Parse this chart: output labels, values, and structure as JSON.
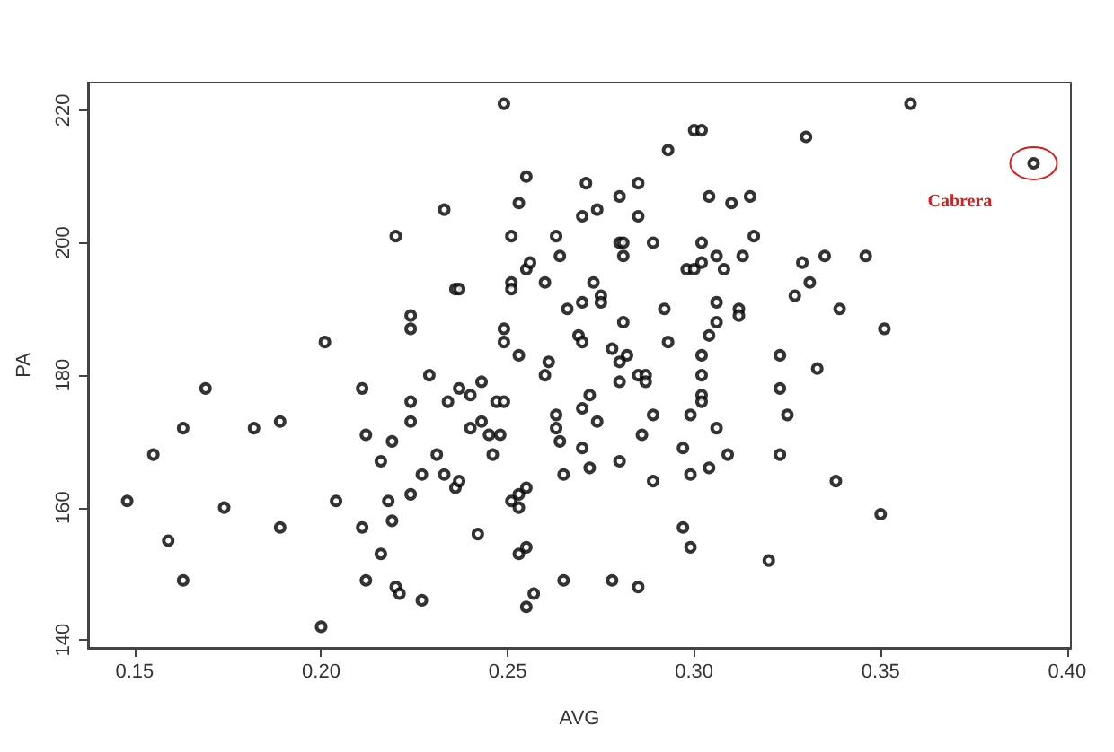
{
  "chart_data": {
    "type": "scatter",
    "xlabel": "AVG",
    "ylabel": "PA",
    "xlim": [
      0.1375,
      0.401
    ],
    "ylim": [
      138.8,
      224.2
    ],
    "xticks": [
      0.15,
      {
        "value": 0.2,
        "label": "0.20"
      },
      0.25,
      {
        "value": 0.3,
        "label": "0.30"
      },
      0.35,
      {
        "value": 0.4,
        "label": "0.40"
      }
    ],
    "yticks": [
      140,
      160,
      180,
      200,
      220
    ],
    "marker": "circle",
    "annotations": [
      {
        "text": "Cabrera",
        "x": 0.391,
        "y": 212
      }
    ],
    "series": [
      {
        "color": "#000000",
        "x": [
          0.22,
          0.224,
          0.224,
          0.201,
          0.169,
          0.211,
          0.224,
          0.163,
          0.182,
          0.189,
          0.224,
          0.155,
          0.212,
          0.219,
          0.216,
          0.224,
          0.148,
          0.204,
          0.218,
          0.174,
          0.219,
          0.189,
          0.211,
          0.159,
          0.216,
          0.163,
          0.212,
          0.22,
          0.221,
          0.2,
          0.249,
          0.255,
          0.271,
          0.28,
          0.233,
          0.253,
          0.27,
          0.274,
          0.251,
          0.263,
          0.28,
          0.281,
          0.264,
          0.281,
          0.255,
          0.256,
          0.236,
          0.237,
          0.251,
          0.251,
          0.26,
          0.273,
          0.266,
          0.27,
          0.275,
          0.275,
          0.249,
          0.249,
          0.269,
          0.27,
          0.281,
          0.253,
          0.278,
          0.282,
          0.28,
          0.261,
          0.26,
          0.229,
          0.243,
          0.237,
          0.24,
          0.234,
          0.247,
          0.249,
          0.272,
          0.27,
          0.263,
          0.243,
          0.24,
          0.245,
          0.248,
          0.274,
          0.263,
          0.264,
          0.231,
          0.246,
          0.27,
          0.227,
          0.233,
          0.236,
          0.237,
          0.265,
          0.272,
          0.28,
          0.251,
          0.253,
          0.253,
          0.255,
          0.242,
          0.253,
          0.255,
          0.265,
          0.278,
          0.227,
          0.257,
          0.255,
          0.28,
          0.3,
          0.302,
          0.33,
          0.293,
          0.285,
          0.285,
          0.304,
          0.31,
          0.315,
          0.316,
          0.289,
          0.302,
          0.298,
          0.3,
          0.302,
          0.306,
          0.308,
          0.313,
          0.329,
          0.335,
          0.331,
          0.327,
          0.339,
          0.292,
          0.306,
          0.312,
          0.312,
          0.306,
          0.304,
          0.293,
          0.285,
          0.287,
          0.287,
          0.302,
          0.302,
          0.302,
          0.302,
          0.323,
          0.333,
          0.323,
          0.325,
          0.289,
          0.299,
          0.286,
          0.306,
          0.297,
          0.309,
          0.323,
          0.289,
          0.299,
          0.304,
          0.338,
          0.297,
          0.299,
          0.32,
          0.285,
          0.358,
          0.391,
          0.346,
          0.351,
          0.35
        ],
        "values": [
          201,
          189,
          187,
          185,
          178,
          178,
          176,
          172,
          172,
          173,
          173,
          168,
          171,
          170,
          167,
          162,
          161,
          161,
          161,
          160,
          158,
          157,
          157,
          155,
          153,
          149,
          149,
          148,
          147,
          142,
          221,
          210,
          209,
          207,
          205,
          206,
          204,
          205,
          201,
          201,
          200,
          200,
          198,
          198,
          196,
          197,
          193,
          193,
          194,
          193,
          194,
          194,
          190,
          191,
          192,
          191,
          187,
          185,
          186,
          185,
          188,
          183,
          184,
          183,
          182,
          182,
          180,
          180,
          179,
          178,
          177,
          176,
          176,
          176,
          177,
          175,
          174,
          173,
          172,
          171,
          171,
          173,
          172,
          170,
          168,
          168,
          169,
          165,
          165,
          163,
          164,
          165,
          166,
          167,
          161,
          162,
          160,
          163,
          156,
          153,
          154,
          149,
          149,
          146,
          147,
          145,
          179,
          217,
          217,
          216,
          214,
          209,
          204,
          207,
          206,
          207,
          201,
          200,
          200,
          196,
          196,
          197,
          198,
          196,
          198,
          197,
          198,
          194,
          192,
          190,
          190,
          191,
          190,
          189,
          188,
          186,
          185,
          180,
          180,
          179,
          183,
          180,
          177,
          176,
          183,
          181,
          178,
          174,
          174,
          174,
          171,
          172,
          169,
          168,
          168,
          164,
          165,
          166,
          164,
          157,
          154,
          152,
          148,
          221,
          212,
          198,
          187,
          159
        ]
      }
    ]
  }
}
